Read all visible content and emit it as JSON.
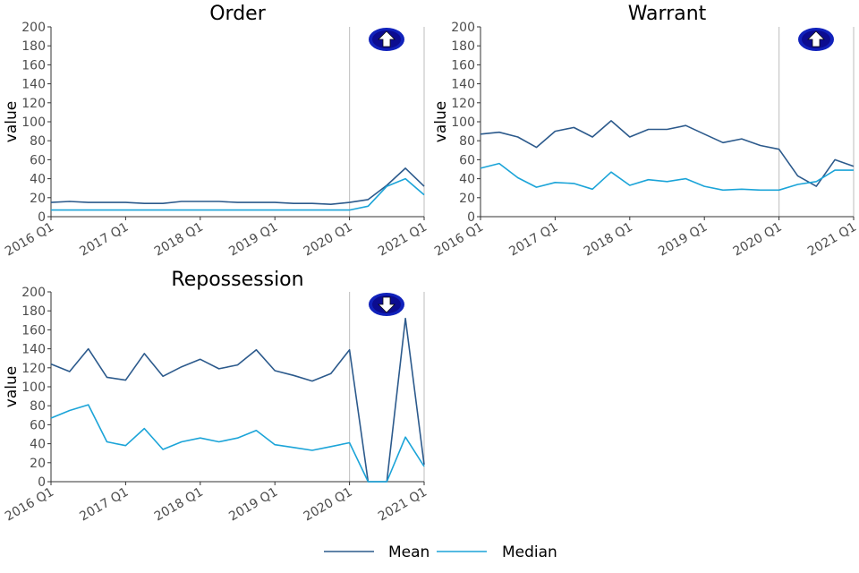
{
  "chart_data": {
    "type": "line",
    "x": [
      "2016 Q1",
      "2016 Q2",
      "2016 Q3",
      "2016 Q4",
      "2017 Q1",
      "2017 Q2",
      "2017 Q3",
      "2017 Q4",
      "2018 Q1",
      "2018 Q2",
      "2018 Q3",
      "2018 Q4",
      "2019 Q1",
      "2019 Q2",
      "2019 Q3",
      "2019 Q4",
      "2020 Q1",
      "2020 Q2",
      "2020 Q3",
      "2020 Q4",
      "2021 Q1"
    ],
    "x_tick_labels": [
      "2016 Q1",
      "2017 Q1",
      "2018 Q1",
      "2019 Q1",
      "2020 Q1",
      "2021 Q1"
    ],
    "ylabel": "value",
    "ylim": [
      0,
      200
    ],
    "y_ticks": [
      0,
      20,
      40,
      60,
      80,
      100,
      120,
      140,
      160,
      180,
      200
    ],
    "reference_lines_x": [
      "2020 Q1",
      "2021 Q1"
    ],
    "grid": false,
    "legend_position": "bottom",
    "series_colors": {
      "mean": "#2c5a8c",
      "median": "#1ba4d8"
    },
    "legend": [
      {
        "key": "mean",
        "label": "Mean"
      },
      {
        "key": "median",
        "label": "Median"
      }
    ],
    "panels": [
      {
        "title": "Order",
        "arrow": "up-arrow-icon",
        "series": [
          {
            "key": "mean",
            "values": [
              15,
              16,
              15,
              15,
              15,
              14,
              14,
              16,
              16,
              16,
              15,
              15,
              15,
              14,
              14,
              13,
              15,
              18,
              33,
              51,
              32
            ]
          },
          {
            "key": "median",
            "values": [
              7,
              7,
              7,
              7,
              7,
              7,
              7,
              7,
              7,
              7,
              7,
              7,
              7,
              7,
              7,
              7,
              7,
              11,
              32,
              40,
              23
            ]
          }
        ]
      },
      {
        "title": "Warrant",
        "arrow": "up-arrow-icon",
        "series": [
          {
            "key": "mean",
            "values": [
              87,
              89,
              84,
              73,
              90,
              94,
              84,
              101,
              84,
              92,
              92,
              96,
              87,
              78,
              82,
              75,
              71,
              43,
              32,
              60,
              53
            ]
          },
          {
            "key": "median",
            "values": [
              51,
              56,
              41,
              31,
              36,
              35,
              29,
              47,
              33,
              39,
              37,
              40,
              32,
              28,
              29,
              28,
              28,
              34,
              37,
              49,
              49
            ]
          }
        ]
      },
      {
        "title": "Repossession",
        "arrow": "down-arrow-icon",
        "series": [
          {
            "key": "mean",
            "values": [
              124,
              116,
              140,
              110,
              107,
              135,
              111,
              121,
              129,
              119,
              123,
              139,
              117,
              112,
              106,
              114,
              139,
              0,
              0,
              172,
              18
            ]
          },
          {
            "key": "median",
            "values": [
              67,
              75,
              81,
              42,
              38,
              56,
              34,
              42,
              46,
              42,
              46,
              54,
              39,
              36,
              33,
              37,
              41,
              0,
              0,
              47,
              16
            ]
          }
        ]
      }
    ]
  }
}
